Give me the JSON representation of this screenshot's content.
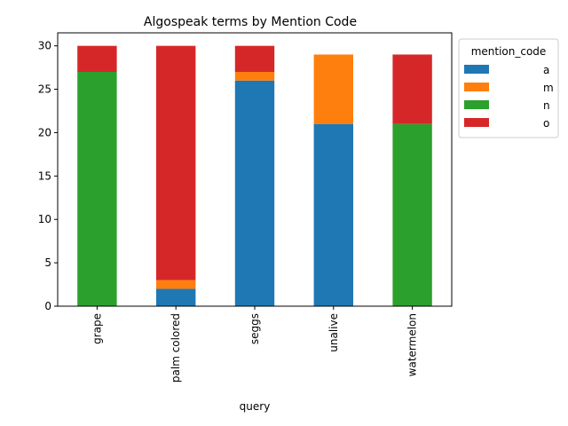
{
  "chart_data": {
    "type": "bar",
    "stacked": true,
    "title": "Algospeak terms by Mention Code",
    "xlabel": "query",
    "ylabel": "",
    "categories": [
      "grape",
      "palm colored",
      "seggs",
      "unalive",
      "watermelon"
    ],
    "ylim": [
      0,
      31.5
    ],
    "yticks": [
      0,
      5,
      10,
      15,
      20,
      25,
      30
    ],
    "legend_title": "mention_code",
    "legend_position": "outside-top-right",
    "grid": false,
    "series": [
      {
        "name": "a",
        "color": "#1f77b4",
        "values": [
          0,
          2,
          26,
          21,
          0
        ]
      },
      {
        "name": "m",
        "color": "#ff7f0e",
        "values": [
          0,
          1,
          1,
          8,
          0
        ]
      },
      {
        "name": "n",
        "color": "#2ca02c",
        "values": [
          27,
          0,
          0,
          0,
          21
        ]
      },
      {
        "name": "o",
        "color": "#d62728",
        "values": [
          3,
          27,
          3,
          0,
          8
        ]
      }
    ]
  }
}
